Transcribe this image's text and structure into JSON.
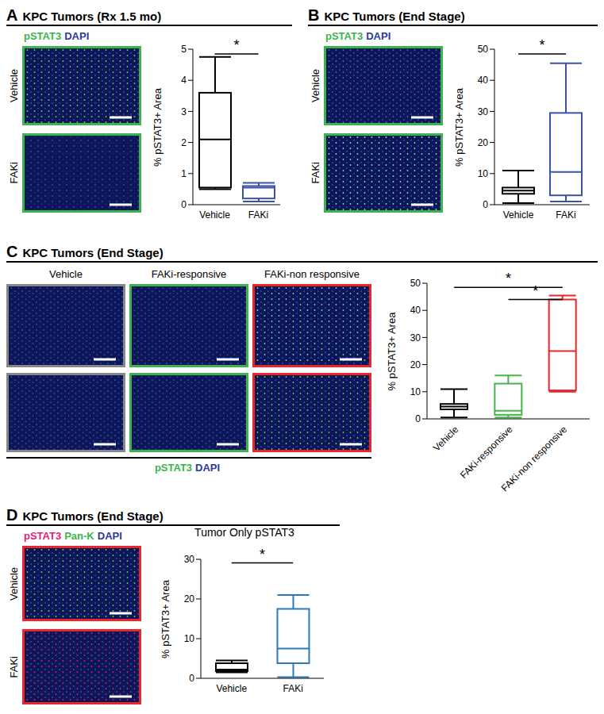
{
  "chart_data": [
    {
      "panel": "A",
      "title": "KPC Tumors (Rx 1.5 mo)",
      "type": "box",
      "image_legend": [
        {
          "text": "pSTAT3",
          "color": "#39b54a"
        },
        {
          "text": "DAPI",
          "color": "#2b3a9a"
        }
      ],
      "image_labels": [
        "Vehicle",
        "FAKi"
      ],
      "y_label": "% pSTAT3+ Area",
      "categories": [
        "Vehicle",
        "FAKi"
      ],
      "boxes": [
        {
          "min": 0.5,
          "q1": 0.55,
          "median": 2.1,
          "q3": 3.6,
          "max": 4.75
        },
        {
          "min": 0.1,
          "q1": 0.2,
          "median": 0.55,
          "q3": 0.6,
          "max": 0.7
        }
      ],
      "colors": [
        "#000000",
        "#3a53a4"
      ],
      "ylim": [
        0,
        5
      ],
      "yticks": [
        0,
        1,
        2,
        3,
        4,
        5
      ],
      "significance": [
        {
          "from": "Vehicle",
          "to": "FAKi",
          "label": "*"
        }
      ]
    },
    {
      "panel": "B",
      "title": "KPC Tumors (End Stage)",
      "type": "box",
      "image_legend": [
        {
          "text": "pSTAT3",
          "color": "#39b54a"
        },
        {
          "text": "DAPI",
          "color": "#2b3a9a"
        }
      ],
      "image_labels": [
        "Vehicle",
        "FAKi"
      ],
      "y_label": "% pSTAT3+ Area",
      "categories": [
        "Vehicle",
        "FAKi"
      ],
      "boxes": [
        {
          "min": 0.5,
          "q1": 3.5,
          "median": 4.5,
          "q3": 5.5,
          "max": 11
        },
        {
          "min": 1,
          "q1": 3,
          "median": 10.5,
          "q3": 29.5,
          "max": 45.5
        }
      ],
      "colors": [
        "#000000",
        "#3a53a4"
      ],
      "ylim": [
        0,
        50
      ],
      "yticks": [
        0,
        10,
        20,
        30,
        40,
        50
      ],
      "significance": [
        {
          "from": "Vehicle",
          "to": "FAKi",
          "label": "*"
        }
      ]
    },
    {
      "panel": "C",
      "title": "KPC Tumors (End Stage)",
      "type": "box",
      "image_legend": [
        {
          "text": "pSTAT3",
          "color": "#39b54a"
        },
        {
          "text": "DAPI",
          "color": "#2b3a9a"
        }
      ],
      "image_labels": [
        "Vehicle",
        "FAKi-responsive",
        "FAKi-non responsive"
      ],
      "y_label": "% pSTAT3+ Area",
      "categories": [
        "Vehicle",
        "FAKi-responsive",
        "FAKi-non responsive"
      ],
      "boxes": [
        {
          "min": 0.5,
          "q1": 3.5,
          "median": 4.5,
          "q3": 5.5,
          "max": 11
        },
        {
          "min": 0.5,
          "q1": 1.5,
          "median": 3,
          "q3": 13,
          "max": 16
        },
        {
          "min": 10,
          "q1": 10.5,
          "median": 25,
          "q3": 44,
          "max": 45.5
        }
      ],
      "colors": [
        "#000000",
        "#44b549",
        "#e8262b"
      ],
      "ylim": [
        0,
        50
      ],
      "yticks": [
        0,
        10,
        20,
        30,
        40,
        50
      ],
      "significance": [
        {
          "from": "Vehicle",
          "to": "FAKi-non responsive",
          "label": "*"
        },
        {
          "from": "FAKi-responsive",
          "to": "FAKi-non responsive",
          "label": "*"
        }
      ]
    },
    {
      "panel": "D",
      "title": "KPC Tumors (End Stage)",
      "type": "box",
      "chart_title": "Tumor Only pSTAT3",
      "image_legend": [
        {
          "text": "pSTAT3",
          "color": "#e6197f"
        },
        {
          "text": "Pan-K",
          "color": "#39b54a"
        },
        {
          "text": "DAPI",
          "color": "#2b3a9a"
        }
      ],
      "image_labels": [
        "Vehicle",
        "FAKi"
      ],
      "y_label": "% pSTAT3+ Area",
      "categories": [
        "Vehicle",
        "FAKi"
      ],
      "boxes": [
        {
          "min": 1.5,
          "q1": 1.8,
          "median": 2.2,
          "q3": 3.8,
          "max": 4.5
        },
        {
          "min": 0.3,
          "q1": 3.8,
          "median": 7.5,
          "q3": 17.5,
          "max": 21
        }
      ],
      "colors": [
        "#000000",
        "#2a7ab8"
      ],
      "ylim": [
        0,
        30
      ],
      "yticks": [
        0,
        10,
        20,
        30
      ],
      "significance": [
        {
          "from": "Vehicle",
          "to": "FAKi",
          "label": "*"
        }
      ]
    }
  ]
}
